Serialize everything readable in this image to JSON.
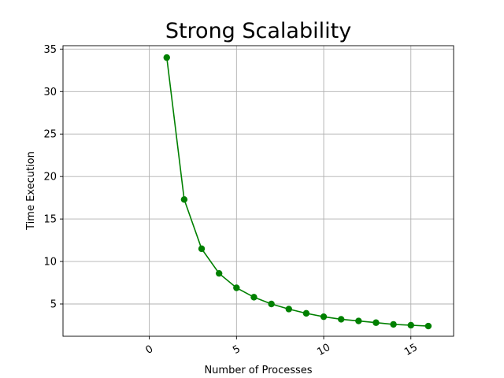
{
  "chart_data": {
    "type": "line",
    "title": "Strong Scalability",
    "xlabel": "Number of Processes",
    "ylabel": "Time Execution",
    "xlim": [
      -4.95,
      17.45
    ],
    "ylim": [
      1.2,
      35.4
    ],
    "x_ticks": [
      0,
      5,
      10,
      15
    ],
    "y_ticks": [
      5,
      10,
      15,
      20,
      25,
      30,
      35
    ],
    "x_tick_rotation": 30,
    "grid": true,
    "legend": "none",
    "series": [
      {
        "color": "#008000",
        "marker": "circle",
        "x": [
          1,
          2,
          3,
          4,
          5,
          6,
          7,
          8,
          9,
          10,
          11,
          12,
          13,
          14,
          15,
          16
        ],
        "y": [
          34.0,
          17.3,
          11.5,
          8.6,
          6.9,
          5.8,
          5.0,
          4.4,
          3.9,
          3.5,
          3.2,
          3.0,
          2.8,
          2.6,
          2.5,
          2.4
        ]
      }
    ]
  }
}
